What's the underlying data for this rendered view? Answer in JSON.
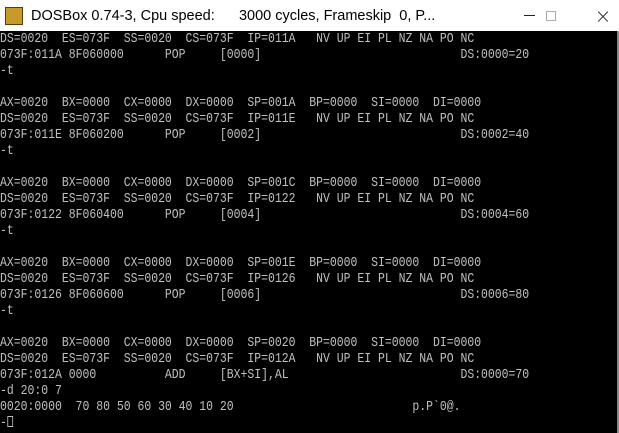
{
  "window": {
    "title": "DOSBox 0.74-3, Cpu speed:      3000 cycles, Frameskip  0, P...",
    "icon": "dosbox-icon",
    "icon_text": "DOS BOX",
    "controls": {
      "minimize": "minimize-icon",
      "maximize": "maximize-icon",
      "close": "×"
    }
  },
  "terminal": {
    "lines": [
      "DS=0020  ES=073F  SS=0020  CS=073F  IP=011A   NV UP EI PL NZ NA PO NC",
      "073F:011A 8F060000      POP     [0000]                             DS:0000=20",
      "-t",
      "",
      "AX=0020  BX=0000  CX=0000  DX=0000  SP=001A  BP=0000  SI=0000  DI=0000",
      "DS=0020  ES=073F  SS=0020  CS=073F  IP=011E   NV UP EI PL NZ NA PO NC",
      "073F:011E 8F060200      POP     [0002]                             DS:0002=40",
      "-t",
      "",
      "AX=0020  BX=0000  CX=0000  DX=0000  SP=001C  BP=0000  SI=0000  DI=0000",
      "DS=0020  ES=073F  SS=0020  CS=073F  IP=0122   NV UP EI PL NZ NA PO NC",
      "073F:0122 8F060400      POP     [0004]                             DS:0004=60",
      "-t",
      "",
      "AX=0020  BX=0000  CX=0000  DX=0000  SP=001E  BP=0000  SI=0000  DI=0000",
      "DS=0020  ES=073F  SS=0020  CS=073F  IP=0126   NV UP EI PL NZ NA PO NC",
      "073F:0126 8F060600      POP     [0006]                             DS:0006=80",
      "-t",
      "",
      "AX=0020  BX=0000  CX=0000  DX=0000  SP=0020  BP=0000  SI=0000  DI=0000",
      "DS=0020  ES=073F  SS=0020  CS=073F  IP=012A   NV UP EI PL NZ NA PO NC",
      "073F:012A 0000          ADD     [BX+SI],AL                         DS:0000=70",
      "-d 20:0 7",
      "0020:0000  70 80 50 60 30 40 10 20                          p.P`0@.",
      "-"
    ]
  }
}
